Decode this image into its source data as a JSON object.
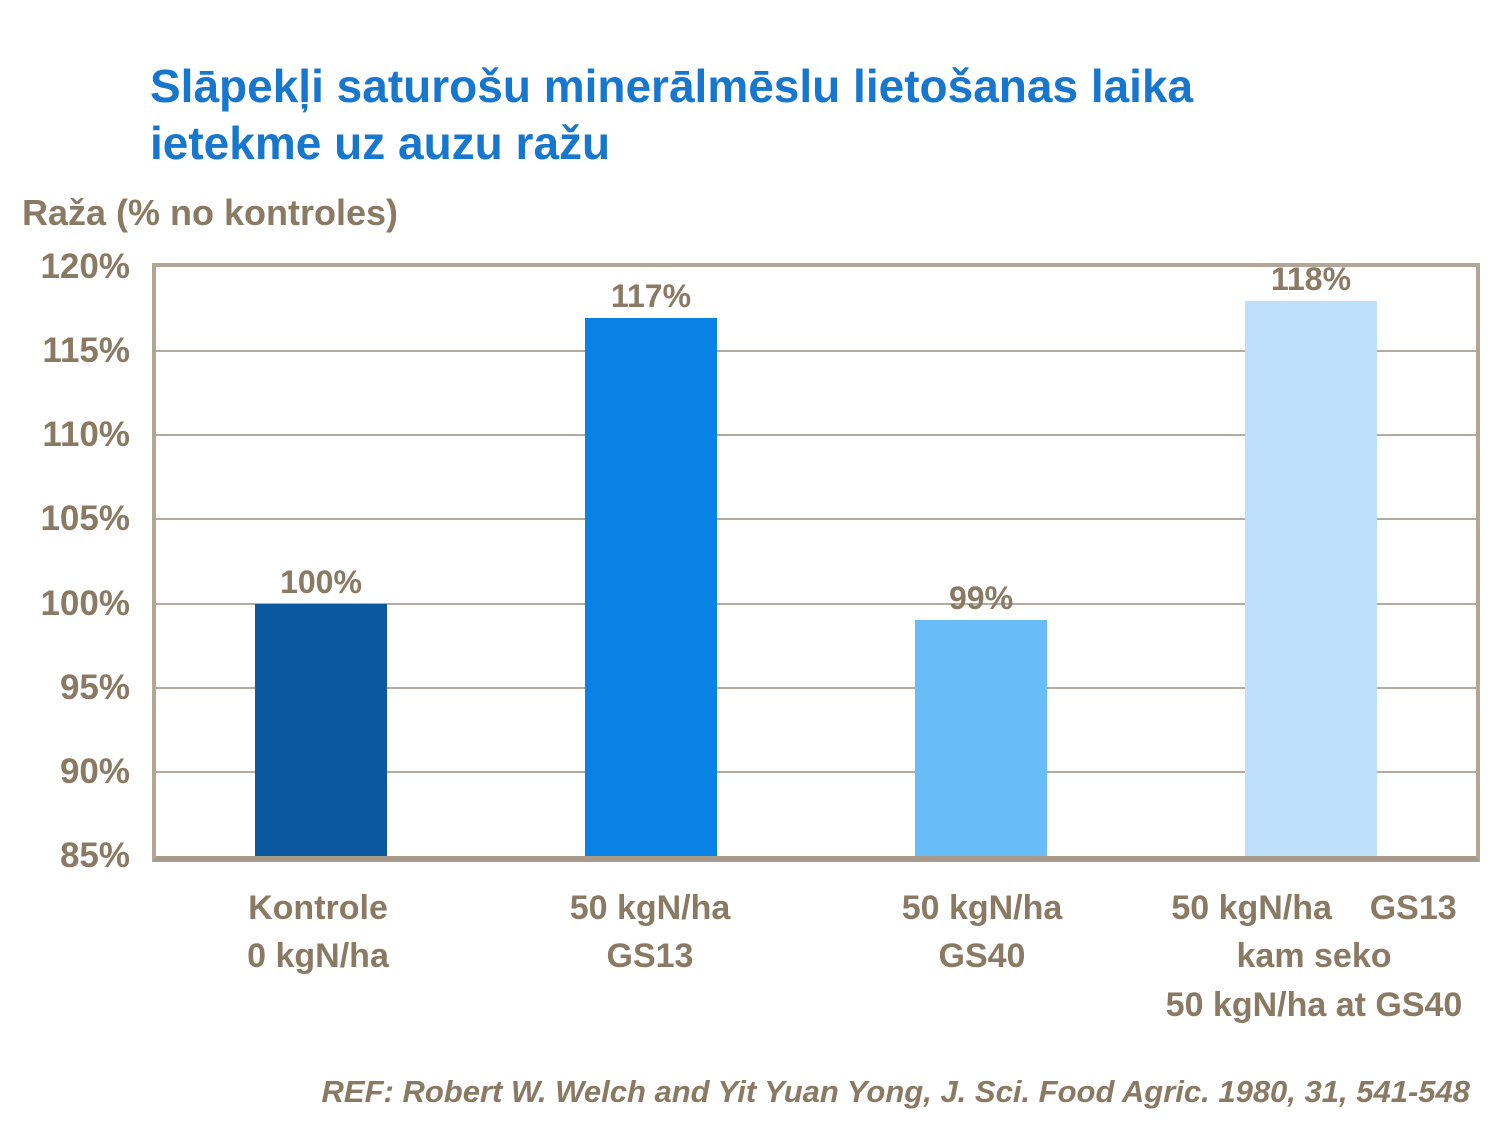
{
  "slide": {
    "title_lines": [
      "Slāpekļi saturošu minerālmēslu lietošanas laika",
      "ietekme uz auzu ražu"
    ],
    "reference": "REF: Robert W. Welch and Yit Yuan Yong, J. Sci. Food Agric. 1980, 31, 541-548"
  },
  "colors": {
    "title_blue": "#1777CE",
    "text_brown": "#8A7A63",
    "frame_tan": "#B2A698",
    "gridline_tan": "#B5AA9D",
    "bar_palette": [
      "#0B57A0",
      "#0883E5",
      "#68BDF8",
      "#BFE0FA"
    ]
  },
  "chart_data": {
    "type": "bar",
    "title": "Slāpekļi saturošu minerālmēslu lietošanas laika ietekme uz auzu ražu",
    "ylabel": "Raža (% no kontroles)",
    "xlabel": "",
    "ylim": [
      85,
      120
    ],
    "ytick_step": 5,
    "yticks": [
      120,
      115,
      110,
      105,
      100,
      95,
      90,
      85
    ],
    "ytick_labels": [
      "120%",
      "115%",
      "110%",
      "105%",
      "100%",
      "95%",
      "90%",
      "85%"
    ],
    "grid": "horizontal gridlines every 5%, tan colored, framed plot area",
    "legend": "none",
    "categories": [
      [
        "Kontrole",
        "0 kgN/ha"
      ],
      [
        "50 kgN/ha",
        "GS13"
      ],
      [
        "50 kgN/ha",
        "GS40"
      ],
      [
        "50 kgN/ha    GS13",
        "kam seko",
        "50 kgN/ha at GS40"
      ]
    ],
    "values": [
      100,
      117,
      99,
      118
    ],
    "value_labels": [
      "100%",
      "117%",
      "99%",
      "118%"
    ]
  }
}
